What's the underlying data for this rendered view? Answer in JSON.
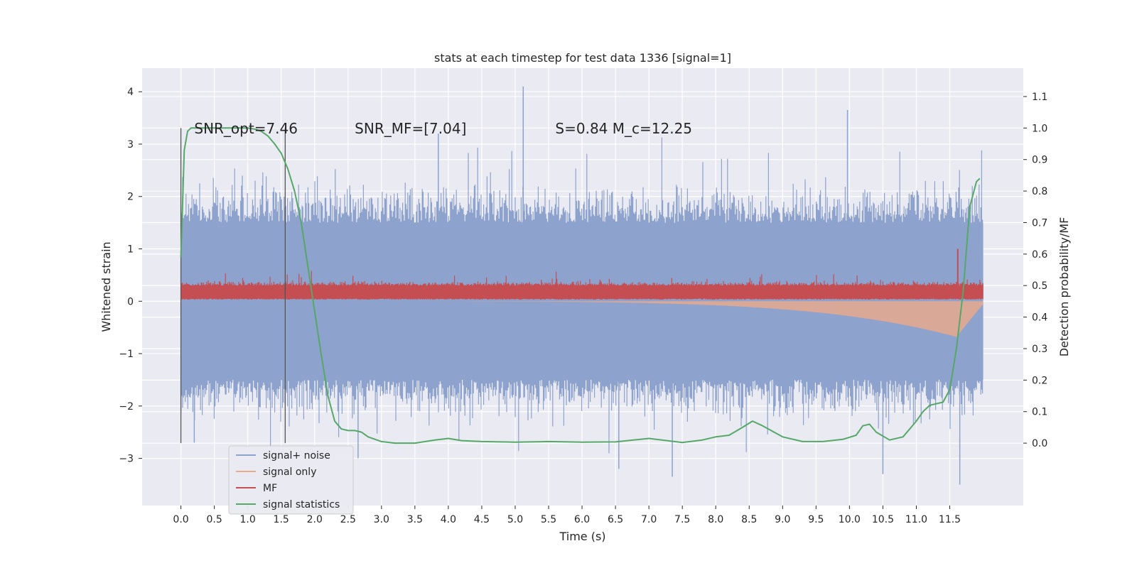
{
  "chart_data": {
    "type": "line",
    "title": "stats at each timestep for test data 1336 [signal=1]",
    "xlabel": "Time (s)",
    "ylabel": "Whitened strain",
    "y2label": "Detection probability/MF",
    "xlim": [
      -0.58,
      12.6
    ],
    "ylim": [
      -3.9,
      4.45
    ],
    "y2lim": [
      -0.198,
      1.19
    ],
    "x_ticks": [
      "0.0",
      "0.5",
      "1.0",
      "1.5",
      "2.0",
      "2.5",
      "3.0",
      "3.5",
      "4.0",
      "4.5",
      "5.0",
      "5.5",
      "6.0",
      "6.5",
      "7.0",
      "7.5",
      "8.0",
      "8.5",
      "9.0",
      "9.5",
      "10.0",
      "10.5",
      "11.0",
      "11.5"
    ],
    "y_ticks": [
      "4",
      "3",
      "2",
      "1",
      "0",
      "−1",
      "−2",
      "−3"
    ],
    "y2_ticks": [
      "1.1",
      "1.0",
      "0.9",
      "0.8",
      "0.7",
      "0.6",
      "0.5",
      "0.4",
      "0.3",
      "0.2",
      "0.1",
      "0.0"
    ],
    "grid": true,
    "legend_position": "lower-left",
    "annotations": [
      {
        "text": "SNR_opt=7.46",
        "x": 0.2,
        "y": 3.3
      },
      {
        "text": "SNR_MF=[7.04]",
        "x": 2.6,
        "y": 3.3
      },
      {
        "text": "S=0.84   M_c=12.25",
        "x": 5.6,
        "y": 3.3
      }
    ],
    "vlines": [
      0.0,
      1.56
    ],
    "series": [
      {
        "name": "signal+ noise",
        "color": "#8da2cc",
        "kind": "noise_band",
        "x_range": [
          0.0,
          12.0
        ],
        "upper_typical": 1.5,
        "lower_typical": -1.5,
        "max": 4.1,
        "min": -3.5
      },
      {
        "name": "signal only",
        "color": "#e8a98c",
        "kind": "chirp_envelope",
        "x_range": [
          0.0,
          12.0
        ],
        "peak_x": 11.65,
        "peak_amplitude": 0.62
      },
      {
        "name": "MF",
        "color": "#c44e52",
        "kind": "noise_band",
        "x_range": [
          0.0,
          12.0
        ],
        "upper_typical": 0.3,
        "lower_typical": 0.05,
        "max": 1.0
      },
      {
        "name": "signal statistics",
        "color": "#55a868",
        "axis": "right",
        "x": [
          0.0,
          0.05,
          0.1,
          0.15,
          0.25,
          0.4,
          0.6,
          0.8,
          1.0,
          1.1,
          1.2,
          1.3,
          1.4,
          1.5,
          1.6,
          1.7,
          1.8,
          1.9,
          2.0,
          2.1,
          2.2,
          2.3,
          2.4,
          2.5,
          2.6,
          2.7,
          2.8,
          3.0,
          3.2,
          3.5,
          3.8,
          4.0,
          4.2,
          4.5,
          5.0,
          5.5,
          6.0,
          6.5,
          7.0,
          7.5,
          7.8,
          8.0,
          8.2,
          8.4,
          8.55,
          8.7,
          9.0,
          9.3,
          9.6,
          9.9,
          10.1,
          10.2,
          10.3,
          10.4,
          10.6,
          10.8,
          11.0,
          11.1,
          11.2,
          11.4,
          11.5,
          11.6,
          11.7,
          11.8,
          11.9,
          11.95
        ],
        "y": [
          0.59,
          0.93,
          0.99,
          1.0,
          1.0,
          1.0,
          1.0,
          1.0,
          1.0,
          0.997,
          0.99,
          0.975,
          0.95,
          0.92,
          0.87,
          0.8,
          0.7,
          0.56,
          0.42,
          0.28,
          0.15,
          0.07,
          0.045,
          0.04,
          0.04,
          0.035,
          0.02,
          0.005,
          0.0,
          0.0,
          0.01,
          0.015,
          0.008,
          0.005,
          0.003,
          0.005,
          0.003,
          0.004,
          0.015,
          0.002,
          0.01,
          0.02,
          0.025,
          0.05,
          0.07,
          0.055,
          0.02,
          0.005,
          0.005,
          0.012,
          0.025,
          0.055,
          0.06,
          0.035,
          0.01,
          0.02,
          0.07,
          0.1,
          0.12,
          0.13,
          0.17,
          0.3,
          0.48,
          0.75,
          0.83,
          0.84
        ]
      }
    ]
  }
}
